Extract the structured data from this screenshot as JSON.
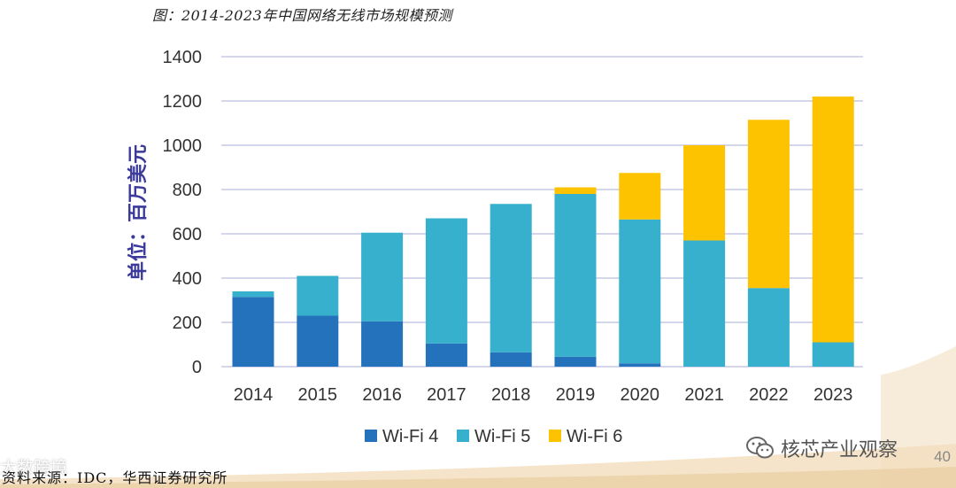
{
  "caption": "图：2014-2023年中国网络无线市场规模预测",
  "source": "资料来源：IDC，华西证券研究所",
  "page_number": "40",
  "watermark_brand": "核芯产业观察",
  "watermark_left": "大数跨境",
  "colors": {
    "wifi4": "#2472bb",
    "wifi5": "#36b0cc",
    "wifi6": "#fdc300",
    "grid": "#c5c8e6",
    "ylabel": "#3b3a9a",
    "tick": "#333333"
  },
  "chart_data": {
    "type": "bar",
    "stacked": true,
    "title": "",
    "ylabel": "单位：百万美元",
    "xlabel": "",
    "ylim": [
      0,
      1400
    ],
    "yticks": [
      0,
      200,
      400,
      600,
      800,
      1000,
      1200,
      1400
    ],
    "categories": [
      "2014",
      "2015",
      "2016",
      "2017",
      "2018",
      "2019",
      "2020",
      "2021",
      "2022",
      "2023"
    ],
    "series": [
      {
        "name": "Wi-Fi 4",
        "color_key": "wifi4",
        "values": [
          315,
          230,
          205,
          105,
          65,
          45,
          15,
          0,
          0,
          0
        ]
      },
      {
        "name": "Wi-Fi 5",
        "color_key": "wifi5",
        "values": [
          25,
          180,
          400,
          565,
          670,
          735,
          650,
          570,
          355,
          110
        ]
      },
      {
        "name": "Wi-Fi 6",
        "color_key": "wifi6",
        "values": [
          0,
          0,
          0,
          0,
          0,
          30,
          210,
          430,
          760,
          1110
        ]
      }
    ],
    "grid": true,
    "legend_position": "bottom-center"
  }
}
